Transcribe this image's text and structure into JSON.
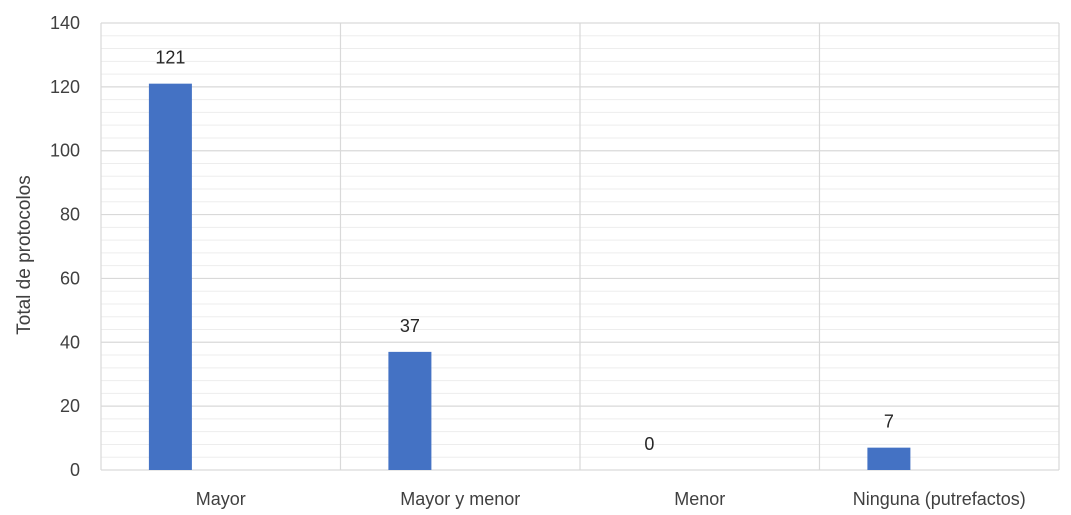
{
  "chart_data": {
    "type": "bar",
    "title": "",
    "xlabel": "",
    "ylabel": "Total de protocolos",
    "categories": [
      "Mayor",
      "Mayor y menor",
      "Menor",
      "Ninguna (putrefactos)"
    ],
    "values": [
      121,
      37,
      0,
      7
    ],
    "data_labels": [
      "121",
      "37",
      "0",
      "7"
    ],
    "ylim": [
      0,
      140
    ],
    "yticks": [
      0,
      20,
      40,
      60,
      80,
      100,
      120,
      140
    ],
    "ytick_labels": [
      "0",
      "20",
      "40",
      "60",
      "80",
      "100",
      "120",
      "140"
    ],
    "grid": true,
    "minor_grid": true,
    "legend": "none",
    "bar_color": "#4472C4",
    "grid_color": "#D9D9D9",
    "minor_grid_color": "#EDEDED"
  }
}
